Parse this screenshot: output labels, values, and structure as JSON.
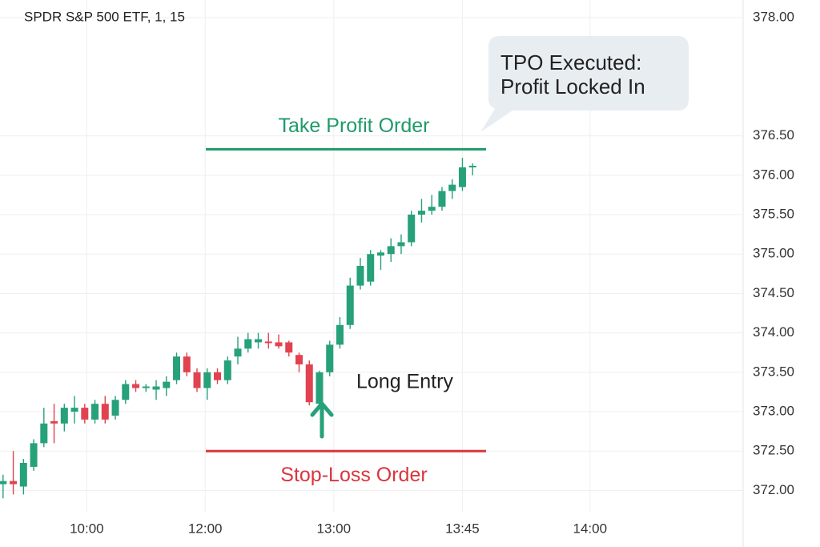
{
  "chart_data": {
    "type": "candlestick",
    "title": "SPDR S&P 500 ETF, 1, 15",
    "up_color": "#26a17a",
    "down_color": "#e0434f",
    "grid": true,
    "open": [
      372.08,
      372.12,
      372.05,
      372.3,
      372.6,
      372.88,
      372.85,
      373.0,
      373.05,
      372.9,
      373.1,
      372.95,
      373.15,
      373.35,
      373.3,
      373.28,
      373.3,
      373.4,
      373.7,
      373.5,
      373.3,
      373.5,
      373.4,
      373.7,
      373.8,
      373.88,
      373.89,
      373.88,
      373.88,
      373.72,
      373.6,
      373.1,
      373.5,
      373.85,
      374.1,
      374.6,
      374.65,
      374.98,
      375.0,
      375.1,
      375.15,
      375.5,
      375.55,
      375.6,
      375.8,
      375.85,
      376.1
    ],
    "high": [
      372.2,
      372.5,
      372.4,
      372.65,
      373.05,
      373.1,
      373.1,
      373.2,
      373.1,
      373.15,
      373.2,
      373.2,
      373.4,
      373.4,
      373.35,
      373.4,
      373.45,
      373.75,
      373.75,
      373.55,
      373.55,
      373.55,
      373.7,
      373.95,
      374.0,
      374.0,
      374.0,
      373.98,
      373.9,
      373.75,
      373.65,
      373.52,
      373.9,
      374.2,
      374.7,
      374.95,
      375.05,
      375.05,
      375.2,
      375.25,
      375.55,
      375.7,
      375.75,
      375.85,
      375.95,
      376.22,
      376.15
    ],
    "low": [
      371.9,
      371.95,
      371.95,
      372.25,
      372.55,
      372.6,
      372.75,
      372.85,
      372.85,
      372.85,
      372.85,
      372.9,
      373.1,
      373.25,
      373.25,
      373.15,
      373.2,
      373.35,
      373.45,
      373.25,
      373.15,
      373.35,
      373.35,
      373.6,
      373.75,
      373.8,
      373.8,
      373.8,
      373.7,
      373.5,
      373.08,
      373.08,
      373.45,
      373.8,
      374.05,
      374.55,
      374.6,
      374.8,
      374.9,
      375.0,
      375.1,
      375.4,
      375.5,
      375.55,
      375.7,
      375.8,
      376.0
    ],
    "close": [
      372.12,
      372.08,
      372.35,
      372.6,
      372.85,
      372.85,
      373.05,
      373.05,
      372.9,
      373.1,
      372.9,
      373.15,
      373.35,
      373.3,
      373.32,
      373.32,
      373.38,
      373.7,
      373.5,
      373.3,
      373.5,
      373.4,
      373.65,
      373.8,
      373.92,
      373.92,
      373.87,
      373.83,
      373.75,
      373.6,
      373.12,
      373.5,
      373.85,
      374.1,
      374.6,
      374.85,
      375.0,
      375.02,
      375.1,
      375.15,
      375.5,
      375.55,
      375.6,
      375.8,
      375.88,
      376.1,
      376.12
    ],
    "xlim": [
      -0.3,
      72.5
    ],
    "xticks": [
      {
        "value": 8.2,
        "label": "10:00"
      },
      {
        "value": 19.8,
        "label": "12:00"
      },
      {
        "value": 32.4,
        "label": "13:00"
      },
      {
        "value": 45.0,
        "label": "13:45"
      },
      {
        "value": 57.5,
        "label": "14:00"
      }
    ],
    "ylim": [
      371.72,
      378.0
    ],
    "yticks": [
      {
        "value": 378,
        "label": "378.00"
      },
      {
        "value": 376.5,
        "label": "376.50"
      },
      {
        "value": 376,
        "label": "376.00"
      },
      {
        "value": 375.5,
        "label": "375.50"
      },
      {
        "value": 375,
        "label": "375.00"
      },
      {
        "value": 374.5,
        "label": "374.50"
      },
      {
        "value": 374,
        "label": "374.00"
      },
      {
        "value": 373.5,
        "label": "373.50"
      },
      {
        "value": 373,
        "label": "373.00"
      },
      {
        "value": 372.5,
        "label": "372.50"
      },
      {
        "value": 372,
        "label": "372.00"
      }
    ],
    "take_profit": {
      "label": "Take Profit Order",
      "value": 376.33,
      "color": "#1f9a6a"
    },
    "stop_loss": {
      "label": "Stop-Loss Order",
      "value": 372.5,
      "color": "#d9363e"
    },
    "entry_label": "Long Entry",
    "callout": [
      "TPO Executed:",
      "Profit Locked In"
    ]
  }
}
